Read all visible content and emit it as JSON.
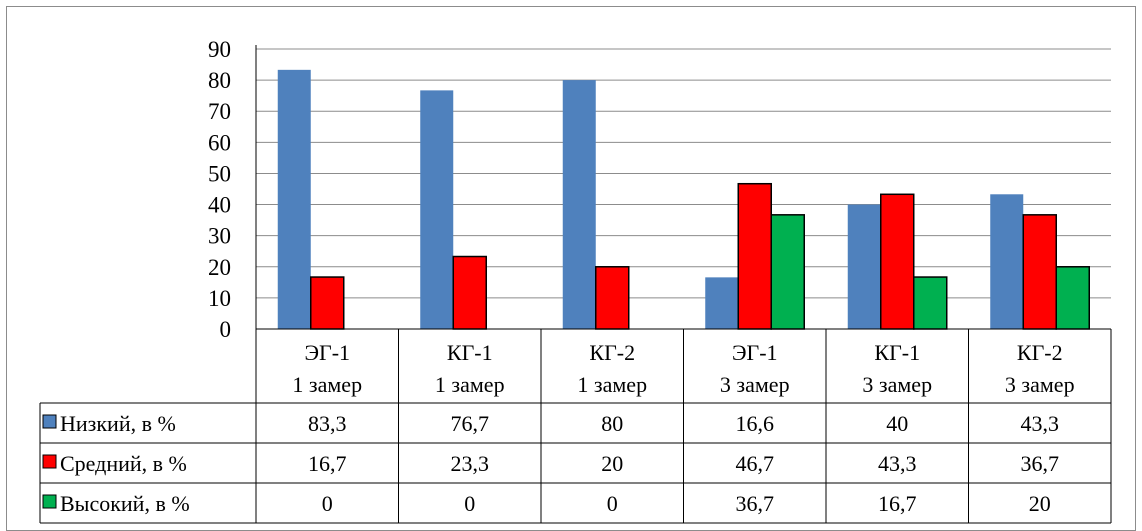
{
  "chart_data": {
    "type": "bar",
    "title": "",
    "xlabel": "",
    "ylabel": "",
    "ylim": [
      0,
      90
    ],
    "yticks": [
      "0",
      "10",
      "20",
      "30",
      "40",
      "50",
      "60",
      "70",
      "80",
      "90"
    ],
    "grid": true,
    "legend_position": "data-table",
    "categories": [
      [
        "ЭГ-1",
        "1 замер"
      ],
      [
        "КГ-1",
        "1 замер"
      ],
      [
        "КГ-2",
        "1 замер"
      ],
      [
        "ЭГ-1",
        "3 замер"
      ],
      [
        "КГ-1",
        "3 замер"
      ],
      [
        "КГ-2",
        "3 замер"
      ]
    ],
    "series": [
      {
        "name": "Низкий, в %",
        "color": "#4f81bd",
        "values": [
          83.3,
          76.7,
          80,
          16.6,
          40,
          43.3
        ],
        "labels": [
          "83,3",
          "76,7",
          "80",
          "16,6",
          "40",
          "43,3"
        ]
      },
      {
        "name": "Средний, в %",
        "color": "#ff0000",
        "values": [
          16.7,
          23.3,
          20,
          46.7,
          43.3,
          36.7
        ],
        "labels": [
          "16,7",
          "23,3",
          "20",
          "46,7",
          "43,3",
          "36,7"
        ]
      },
      {
        "name": "Высокий, в %",
        "color": "#00b050",
        "values": [
          0,
          0,
          0,
          36.7,
          16.7,
          20
        ],
        "labels": [
          "0",
          "0",
          "0",
          "36,7",
          "16,7",
          "20"
        ]
      }
    ]
  }
}
